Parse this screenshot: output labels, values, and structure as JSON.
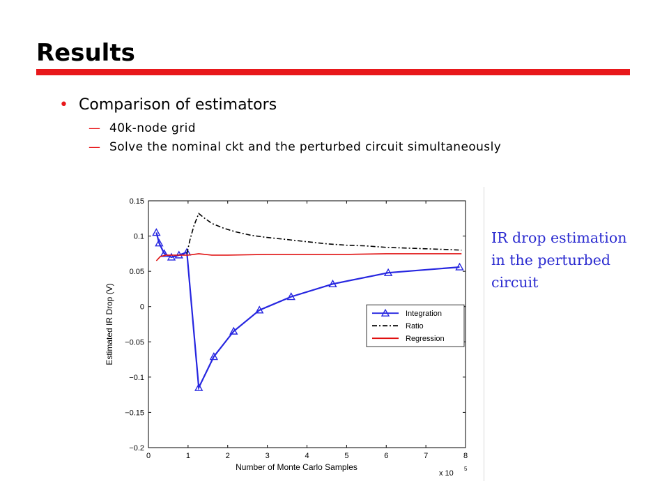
{
  "slide": {
    "title": "Results",
    "accent_color": "#e8181b",
    "bullet_color": "#e8181b",
    "bullets": [
      {
        "text": "Comparison of estimators",
        "sub": [
          "40k-node grid",
          "Solve the nominal ckt and the perturbed circuit simultaneously"
        ]
      }
    ],
    "side_note": "IR drop estimation in the perturbed circuit",
    "side_note_color": "#2b2bd0"
  },
  "chart_data": {
    "type": "line",
    "xlabel": "Number of Monte Carlo Samples",
    "ylabel": "Estimated IR Drop (V)",
    "x_multiplier_label": "x 10",
    "x_multiplier_exp": "5",
    "xlim": [
      0,
      8
    ],
    "ylim": [
      -0.2,
      0.15
    ],
    "xticks": [
      0,
      1,
      2,
      3,
      4,
      5,
      6,
      7,
      8
    ],
    "yticks": [
      -0.2,
      -0.15,
      -0.1,
      -0.05,
      0,
      0.05,
      0.1,
      0.15
    ],
    "ytick_labels": [
      "−0.2",
      "−0.15",
      "−0.1",
      "−0.05",
      "0",
      "0.05",
      "0.1",
      "0.15"
    ],
    "legend_position": "right",
    "grid": false,
    "series": [
      {
        "name": "Integration",
        "color": "#2626e0",
        "style": "solid-triangle",
        "x": [
          0.2,
          0.27,
          0.4,
          0.58,
          0.77,
          0.97,
          1.27,
          1.65,
          2.15,
          2.8,
          3.6,
          4.65,
          6.05,
          7.85
        ],
        "y": [
          0.105,
          0.09,
          0.075,
          0.07,
          0.073,
          0.077,
          -0.115,
          -0.071,
          -0.035,
          -0.005,
          0.014,
          0.032,
          0.048,
          0.056
        ]
      },
      {
        "name": "Ratio",
        "color": "#000000",
        "style": "dashdot",
        "x": [
          0.97,
          1.05,
          1.15,
          1.27,
          1.4,
          1.6,
          1.9,
          2.2,
          2.6,
          3.0,
          3.5,
          4.0,
          4.5,
          5.0,
          5.5,
          6.0,
          6.5,
          7.0,
          7.5,
          7.9
        ],
        "y": [
          0.075,
          0.095,
          0.115,
          0.132,
          0.126,
          0.118,
          0.111,
          0.106,
          0.101,
          0.098,
          0.095,
          0.092,
          0.089,
          0.087,
          0.086,
          0.084,
          0.083,
          0.082,
          0.081,
          0.08
        ]
      },
      {
        "name": "Regression",
        "color": "#e01010",
        "style": "solid",
        "x": [
          0.2,
          0.3,
          0.45,
          0.6,
          0.8,
          1.0,
          1.27,
          1.6,
          2.0,
          3.0,
          4.0,
          5.0,
          6.0,
          7.0,
          7.9
        ],
        "y": [
          0.065,
          0.071,
          0.073,
          0.073,
          0.073,
          0.073,
          0.075,
          0.073,
          0.073,
          0.074,
          0.074,
          0.074,
          0.075,
          0.075,
          0.075
        ]
      }
    ]
  }
}
